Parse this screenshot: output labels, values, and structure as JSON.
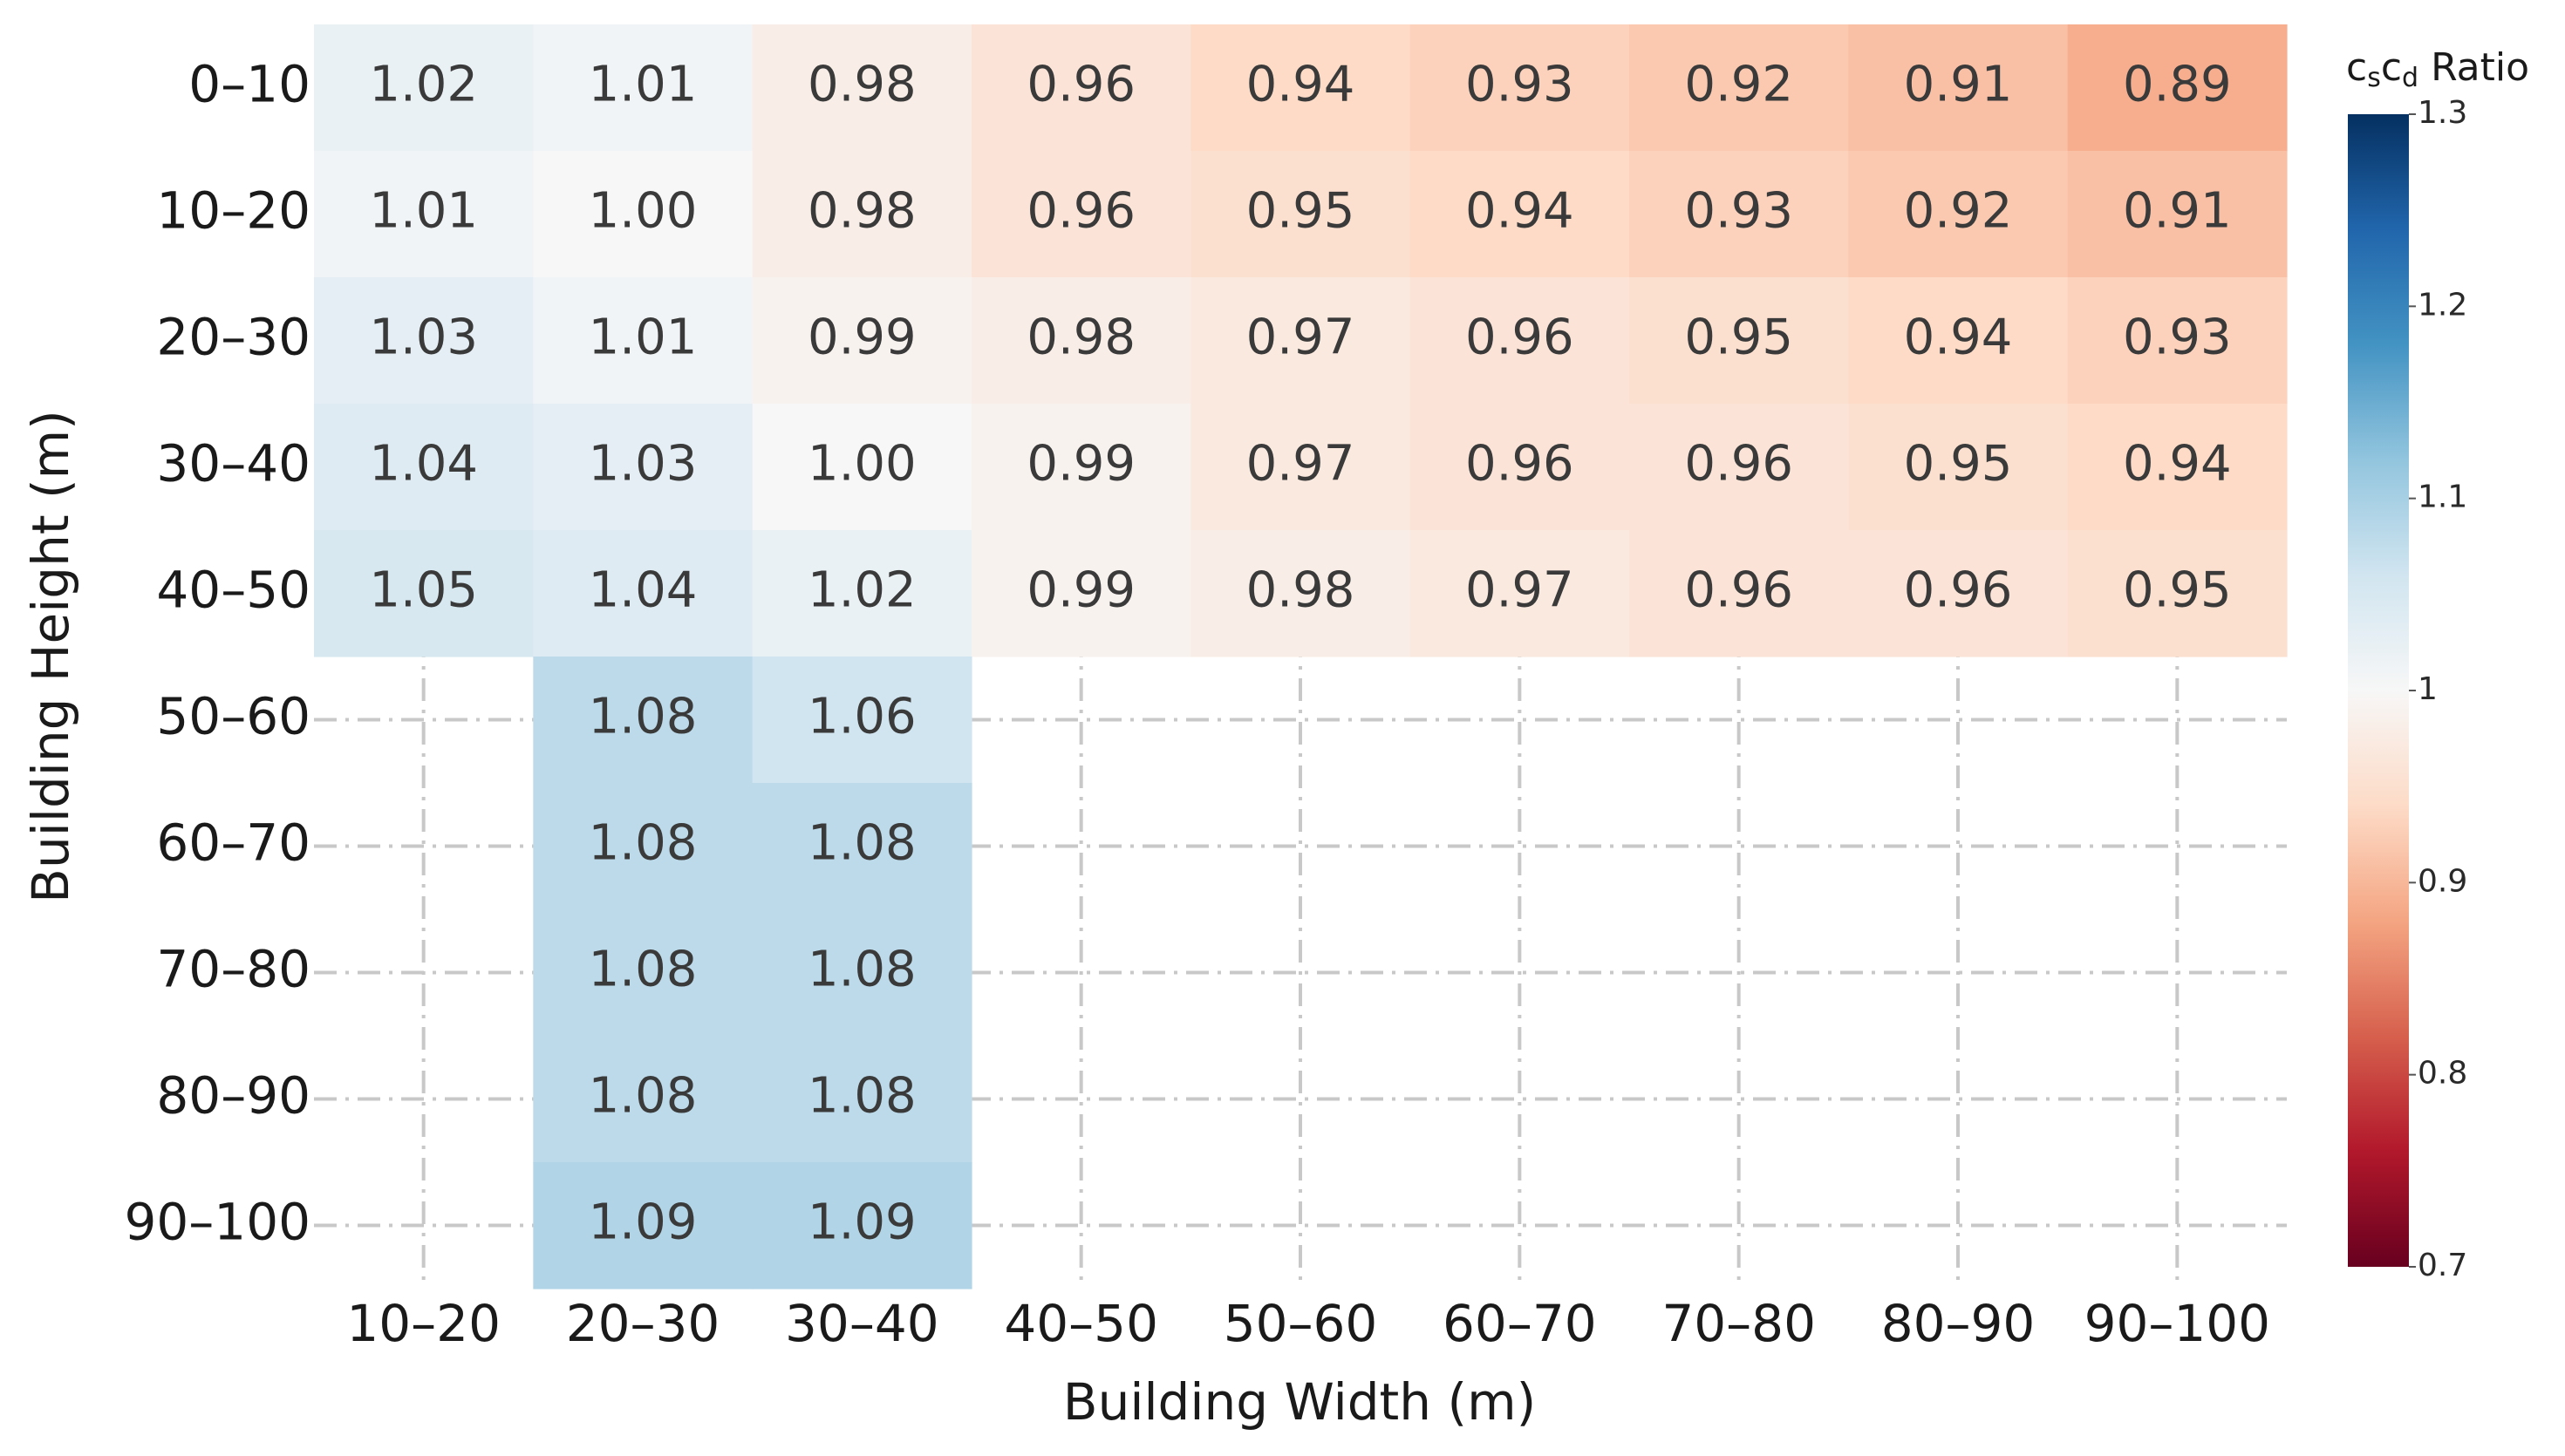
{
  "chart_data": {
    "type": "heatmap",
    "x_label": "Building Width (m)",
    "y_label": "Building Height (m)",
    "x": [
      "10–20",
      "20–30",
      "30–40",
      "40–50",
      "50–60",
      "60–70",
      "70–80",
      "80–90",
      "90–100"
    ],
    "y": [
      "0–10",
      "10–20",
      "20–30",
      "30–40",
      "40–50",
      "50–60",
      "60–70",
      "70–80",
      "80–90",
      "90–100"
    ],
    "z": [
      [
        1.02,
        1.01,
        0.98,
        0.96,
        0.94,
        0.93,
        0.92,
        0.91,
        0.89
      ],
      [
        1.01,
        1.0,
        0.98,
        0.96,
        0.95,
        0.94,
        0.93,
        0.92,
        0.91
      ],
      [
        1.03,
        1.01,
        0.99,
        0.98,
        0.97,
        0.96,
        0.95,
        0.94,
        0.93
      ],
      [
        1.04,
        1.03,
        1.0,
        0.99,
        0.97,
        0.96,
        0.96,
        0.95,
        0.94
      ],
      [
        1.05,
        1.04,
        1.02,
        0.99,
        0.98,
        0.97,
        0.96,
        0.96,
        0.95
      ],
      [
        null,
        1.08,
        1.06,
        null,
        null,
        null,
        null,
        null,
        null
      ],
      [
        null,
        1.08,
        1.08,
        null,
        null,
        null,
        null,
        null,
        null
      ],
      [
        null,
        1.08,
        1.08,
        null,
        null,
        null,
        null,
        null,
        null
      ],
      [
        null,
        1.08,
        1.08,
        null,
        null,
        null,
        null,
        null,
        null
      ],
      [
        null,
        1.09,
        1.09,
        null,
        null,
        null,
        null,
        null,
        null
      ]
    ],
    "value_labels": [
      [
        "1.02",
        "1.01",
        "0.98",
        "0.96",
        "0.94",
        "0.93",
        "0.92",
        "0.91",
        "0.89"
      ],
      [
        "1.01",
        "1.00",
        "0.98",
        "0.96",
        "0.95",
        "0.94",
        "0.93",
        "0.92",
        "0.91"
      ],
      [
        "1.03",
        "1.01",
        "0.99",
        "0.98",
        "0.97",
        "0.96",
        "0.95",
        "0.94",
        "0.93"
      ],
      [
        "1.04",
        "1.03",
        "1.00",
        "0.99",
        "0.97",
        "0.96",
        "0.96",
        "0.95",
        "0.94"
      ],
      [
        "1.05",
        "1.04",
        "1.02",
        "0.99",
        "0.98",
        "0.97",
        "0.96",
        "0.96",
        "0.95"
      ],
      [
        null,
        "1.08",
        "1.06",
        null,
        null,
        null,
        null,
        null,
        null
      ],
      [
        null,
        "1.08",
        "1.08",
        null,
        null,
        null,
        null,
        null,
        null
      ],
      [
        null,
        "1.08",
        "1.08",
        null,
        null,
        null,
        null,
        null,
        null
      ],
      [
        null,
        "1.08",
        "1.08",
        null,
        null,
        null,
        null,
        null,
        null
      ],
      [
        null,
        "1.09",
        "1.09",
        null,
        null,
        null,
        null,
        null,
        null
      ]
    ],
    "colorbar_title": [
      {
        "text": "c"
      },
      {
        "text": "s",
        "sub": true
      },
      {
        "text": "c"
      },
      {
        "text": "d",
        "sub": true
      },
      {
        "text": " Ratio"
      }
    ],
    "zlim": [
      0.7,
      1.3
    ],
    "zticks": [
      0.7,
      0.8,
      0.9,
      1,
      1.1,
      1.2,
      1.3
    ],
    "colorscale": [
      "#67001f",
      "#b2182b",
      "#d6604d",
      "#f4a582",
      "#fddbc7",
      "#f7f7f7",
      "#d1e5f0",
      "#92c5de",
      "#4393c3",
      "#2166ac",
      "#053061"
    ],
    "grid": true
  }
}
